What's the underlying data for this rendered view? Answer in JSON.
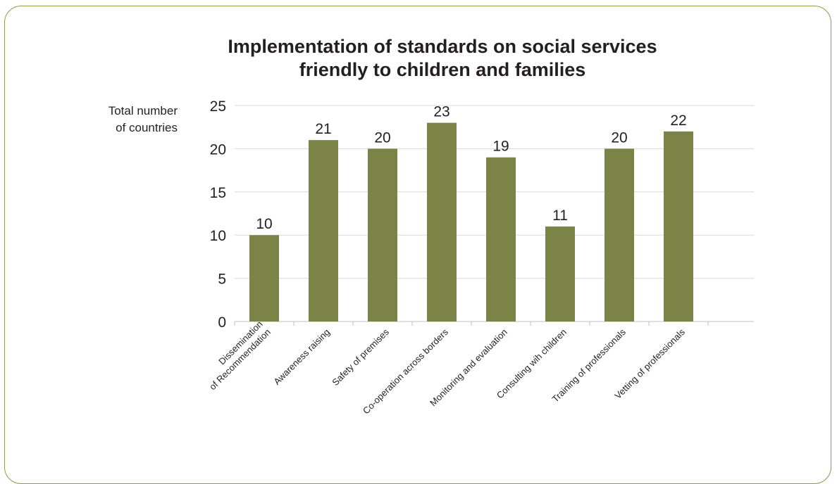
{
  "chart_data": {
    "type": "bar",
    "title": [
      "Implementation of standards on social services",
      "friendly to children and families"
    ],
    "ylabel": [
      "Total number",
      "of countries"
    ],
    "xlabel": "",
    "categories": [
      [
        "Dissemination",
        "of Recommendation"
      ],
      [
        "Awareness raising"
      ],
      [
        "Safety of premises"
      ],
      [
        "Co-operation across borders"
      ],
      [
        "Monitoring and evaluation"
      ],
      [
        "Consulting wih children"
      ],
      [
        "Training of professionals"
      ],
      [
        "Vetting of professionals"
      ]
    ],
    "values": [
      10,
      21,
      20,
      23,
      19,
      11,
      20,
      22
    ],
    "ylim": [
      0,
      25
    ],
    "yticks": [
      0,
      5,
      10,
      15,
      20,
      25
    ],
    "grid": true,
    "legend": "none",
    "bar_color": "#7b8446",
    "frame_color": "#8a9a4e"
  }
}
